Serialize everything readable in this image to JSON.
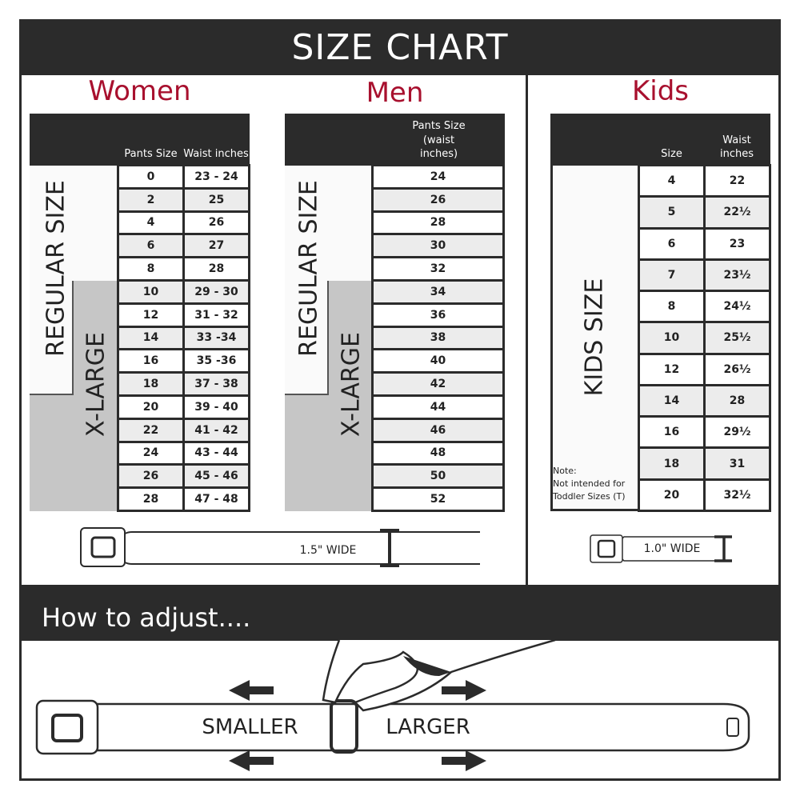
{
  "title": "SIZE CHART",
  "women": {
    "heading": "Women",
    "col1": "Pants Size",
    "col2": "Waist inches",
    "regular_label": "REGULAR SIZE",
    "xlarge_label": "X-LARGE",
    "rows": [
      [
        "0",
        "23 - 24"
      ],
      [
        "2",
        "25"
      ],
      [
        "4",
        "26"
      ],
      [
        "6",
        "27"
      ],
      [
        "8",
        "28"
      ],
      [
        "10",
        "29 - 30"
      ],
      [
        "12",
        "31 - 32"
      ],
      [
        "14",
        "33 -34"
      ],
      [
        "16",
        "35 -36"
      ],
      [
        "18",
        "37 - 38"
      ],
      [
        "20",
        "39 - 40"
      ],
      [
        "22",
        "41 - 42"
      ],
      [
        "24",
        "43 - 44"
      ],
      [
        "26",
        "45 - 46"
      ],
      [
        "28",
        "47 - 48"
      ]
    ]
  },
  "men": {
    "heading": "Men",
    "col1": "Pants Size (waist inches)",
    "regular_label": "REGULAR SIZE",
    "xlarge_label": "X-LARGE",
    "rows": [
      "24",
      "26",
      "28",
      "30",
      "32",
      "34",
      "36",
      "38",
      "40",
      "42",
      "44",
      "46",
      "48",
      "50",
      "52"
    ]
  },
  "kids": {
    "heading": "Kids",
    "col1": "Size",
    "col2": "Waist inches",
    "label": "KIDS SIZE",
    "note_title": "Note:",
    "note_text": "Not intended for Toddler Sizes (T)",
    "rows": [
      [
        "4",
        "22"
      ],
      [
        "5",
        "22½"
      ],
      [
        "6",
        "23"
      ],
      [
        "7",
        "23½"
      ],
      [
        "8",
        "24½"
      ],
      [
        "10",
        "25½"
      ],
      [
        "12",
        "26½"
      ],
      [
        "14",
        "28"
      ],
      [
        "16",
        "29½"
      ],
      [
        "18",
        "31"
      ],
      [
        "20",
        "32½"
      ]
    ]
  },
  "belt_adult_width": "1.5\" WIDE",
  "belt_kids_width": "1.0\" WIDE",
  "adjust": {
    "heading": "How to adjust....",
    "smaller": "SMALLER",
    "larger": "LARGER"
  },
  "colors": {
    "dark": "#2b2b2b",
    "accent": "#a8102e",
    "grey": "#c6c6c6"
  }
}
